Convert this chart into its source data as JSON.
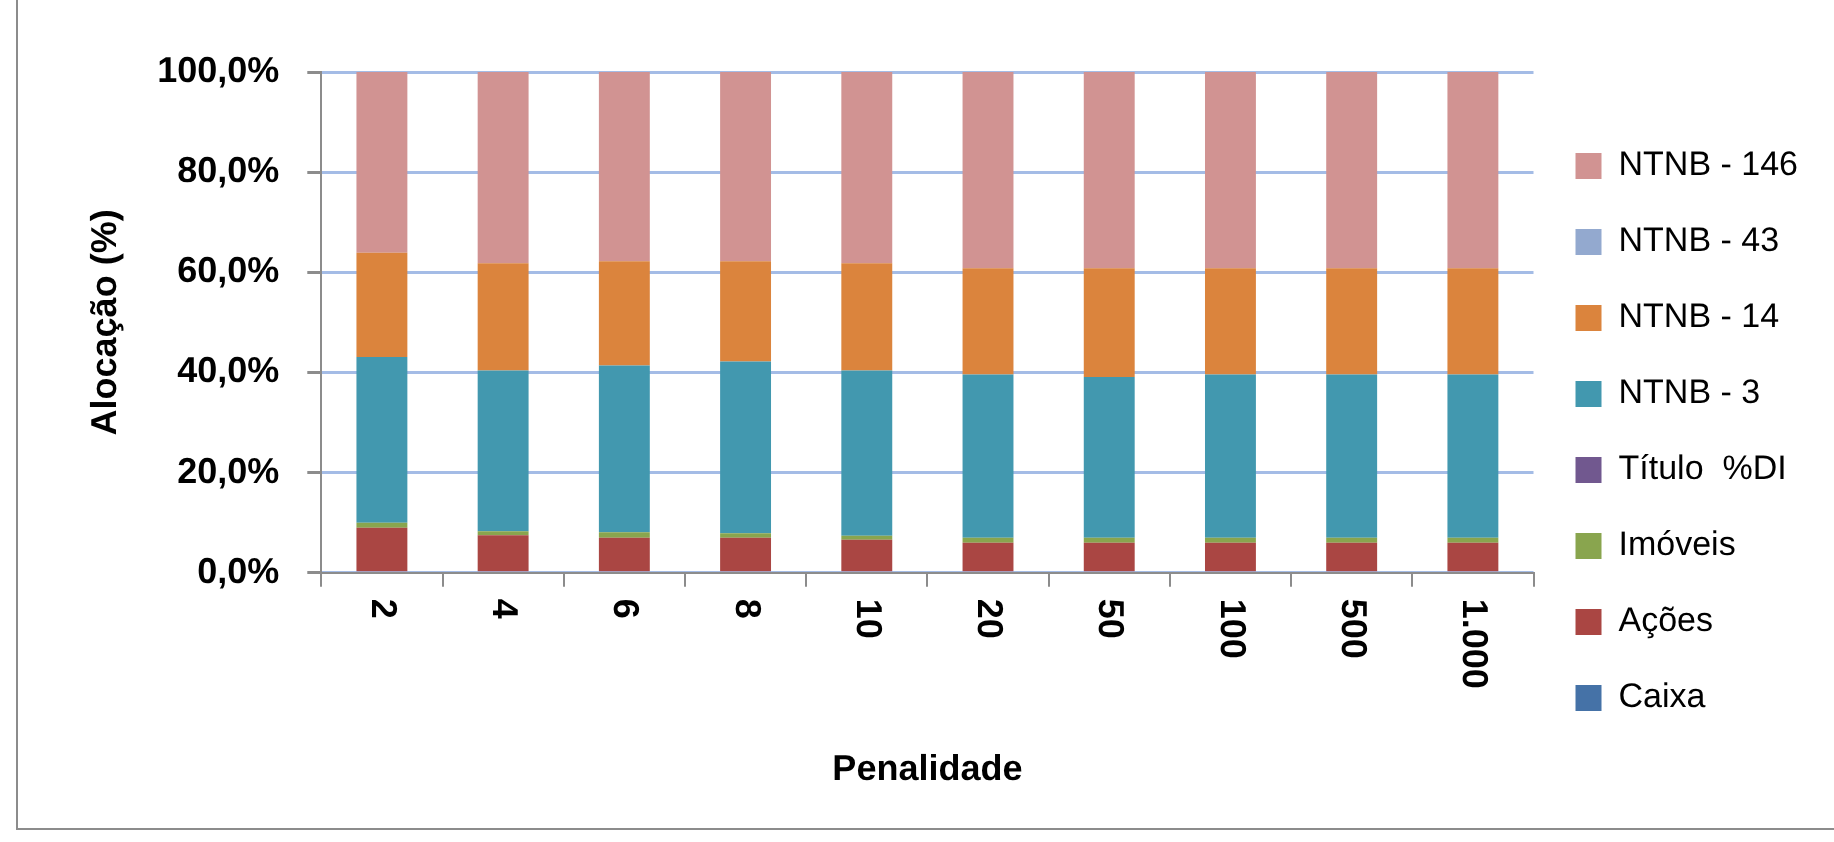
{
  "chart_data": {
    "type": "bar",
    "stacked": true,
    "xlabel": "Penalidade",
    "ylabel": "Alocação (%)",
    "categories": [
      "2",
      "4",
      "6",
      "8",
      "10",
      "20",
      "50",
      "100",
      "500",
      "1.000"
    ],
    "series": [
      {
        "name": "Caixa",
        "color": "#4572a7",
        "values": [
          0,
          0,
          0,
          0,
          0,
          0,
          0,
          0,
          0,
          0
        ]
      },
      {
        "name": "Ações",
        "color": "#aa4643",
        "values": [
          9.0,
          7.5,
          7.0,
          7.0,
          6.6,
          6.0,
          6.0,
          6.0,
          6.0,
          6.0
        ]
      },
      {
        "name": "Imóveis",
        "color": "#89a54e",
        "values": [
          1.0,
          0.8,
          1.1,
          0.9,
          0.8,
          1.0,
          1.0,
          1.0,
          1.0,
          1.0
        ]
      },
      {
        "name": "Título  %DI",
        "color": "#71588f",
        "values": [
          0,
          0,
          0,
          0,
          0,
          0,
          0,
          0,
          0,
          0
        ]
      },
      {
        "name": "NTNB - 3",
        "color": "#4298af",
        "values": [
          33.1,
          32.1,
          33.3,
          34.3,
          33.0,
          32.6,
          32.1,
          32.6,
          32.6,
          32.6
        ]
      },
      {
        "name": "NTNB - 14",
        "color": "#db843d",
        "values": [
          20.8,
          21.4,
          20.8,
          20.0,
          21.4,
          21.2,
          21.7,
          21.2,
          21.2,
          21.2
        ]
      },
      {
        "name": "NTNB - 43",
        "color": "#93a9cf",
        "values": [
          0,
          0,
          0,
          0,
          0,
          0,
          0,
          0,
          0,
          0
        ]
      },
      {
        "name": "NTNB - 146",
        "color": "#d19392",
        "values": [
          36.1,
          38.2,
          37.8,
          37.8,
          38.2,
          39.2,
          39.2,
          39.2,
          39.2,
          39.2
        ]
      }
    ],
    "ylim": [
      0,
      100
    ],
    "yticks": [
      {
        "value": 0,
        "label": "0,0%"
      },
      {
        "value": 20,
        "label": "20,0%"
      },
      {
        "value": 40,
        "label": "40,0%"
      },
      {
        "value": 60,
        "label": "60,0%"
      },
      {
        "value": 80,
        "label": "80,0%"
      },
      {
        "value": 100,
        "label": "100,0%"
      }
    ],
    "grid": "y",
    "legend": "right"
  }
}
